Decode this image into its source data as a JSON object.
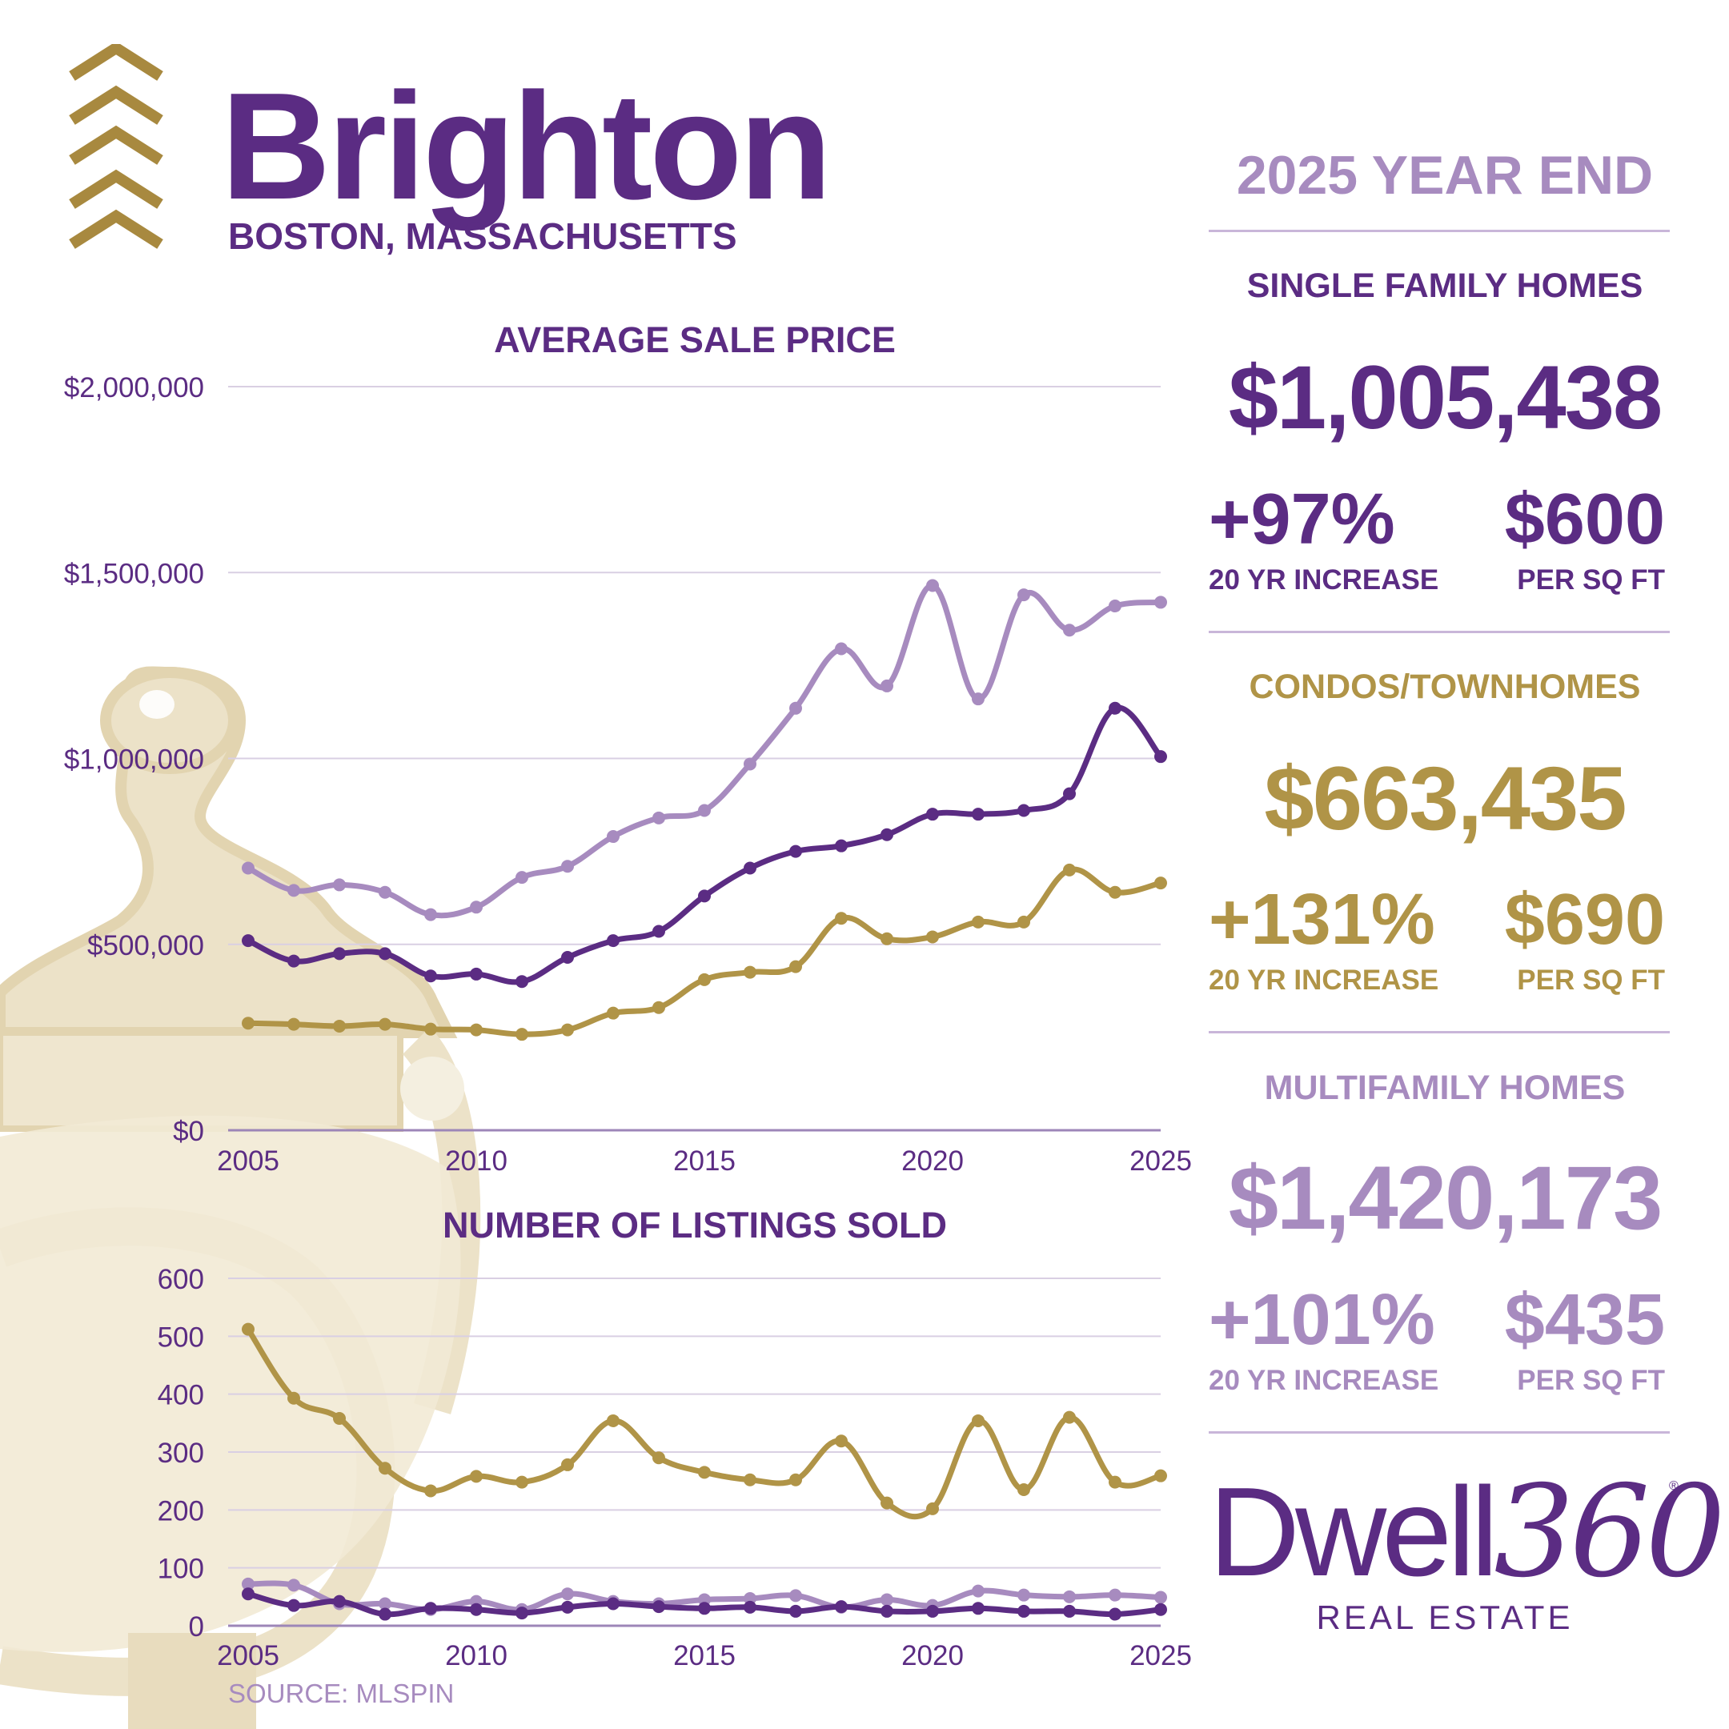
{
  "header": {
    "title": "Brighton",
    "subtitle": "BOSTON, MASSACHUSETTS"
  },
  "summary": {
    "period": "2025 YEAR END",
    "single_family": {
      "heading": "SINGLE FAMILY HOMES",
      "price": "$1,005,438",
      "increase": "+97%",
      "increase_label": "20 YR INCREASE",
      "per_sqft": "$600",
      "per_sqft_label": "PER SQ FT"
    },
    "condos": {
      "heading": "CONDOS/TOWNHOMES",
      "price": "$663,435",
      "increase": "+131%",
      "increase_label": "20 YR INCREASE",
      "per_sqft": "$690",
      "per_sqft_label": "PER SQ FT"
    },
    "multifamily": {
      "heading": "MULTIFAMILY HOMES",
      "price": "$1,420,173",
      "increase": "+101%",
      "increase_label": "20 YR INCREASE",
      "per_sqft": "$435",
      "per_sqft_label": "PER SQ FT"
    }
  },
  "source": "SOURCE: MLSPIN",
  "logo": {
    "word": "Dwell",
    "number": "360",
    "registered": "®",
    "tagline": "REAL ESTATE"
  },
  "colors": {
    "single_family": "#5b2c83",
    "condos": "#b09447",
    "multifamily": "#a78bbf",
    "gridline": "#d9cfe3",
    "axis_text": "#5b2c83",
    "knocker": "#ece2c8"
  },
  "chart_data": [
    {
      "type": "line",
      "title": "AVERAGE SALE PRICE",
      "x": [
        2005,
        2006,
        2007,
        2008,
        2009,
        2010,
        2011,
        2012,
        2013,
        2014,
        2015,
        2016,
        2017,
        2018,
        2019,
        2020,
        2021,
        2022,
        2023,
        2024,
        2025
      ],
      "xticks": [
        "2005",
        "2010",
        "2015",
        "2020",
        "2025"
      ],
      "yticks": [
        "$0",
        "$500,000",
        "$1,000,000",
        "$1,500,000",
        "$2,000,000"
      ],
      "ylim": [
        0,
        2000000
      ],
      "grid": true,
      "series": [
        {
          "key": "multifamily",
          "values": [
            705000,
            645000,
            660000,
            640000,
            580000,
            600000,
            680000,
            710000,
            790000,
            840000,
            860000,
            985000,
            1135000,
            1295000,
            1195000,
            1465000,
            1160000,
            1440000,
            1345000,
            1410000,
            1420000
          ]
        },
        {
          "key": "single_family",
          "values": [
            510000,
            455000,
            475000,
            475000,
            415000,
            420000,
            400000,
            465000,
            510000,
            535000,
            630000,
            705000,
            750000,
            765000,
            795000,
            850000,
            850000,
            860000,
            905000,
            1135000,
            1005000
          ]
        },
        {
          "key": "condos",
          "values": [
            288000,
            285000,
            280000,
            285000,
            272000,
            270000,
            258000,
            270000,
            315000,
            330000,
            405000,
            425000,
            440000,
            570000,
            515000,
            520000,
            560000,
            560000,
            700000,
            640000,
            665000
          ]
        }
      ]
    },
    {
      "type": "line",
      "title": "NUMBER OF LISTINGS SOLD",
      "x": [
        2005,
        2006,
        2007,
        2008,
        2009,
        2010,
        2011,
        2012,
        2013,
        2014,
        2015,
        2016,
        2017,
        2018,
        2019,
        2020,
        2021,
        2022,
        2023,
        2024,
        2025
      ],
      "xticks": [
        "2005",
        "2010",
        "2015",
        "2020",
        "2025"
      ],
      "yticks": [
        "0",
        "100",
        "200",
        "300",
        "400",
        "500",
        "600"
      ],
      "ylim": [
        0,
        600
      ],
      "grid": true,
      "series": [
        {
          "key": "condos",
          "values": [
            512,
            393,
            358,
            272,
            233,
            258,
            248,
            278,
            354,
            290,
            265,
            252,
            252,
            319,
            212,
            202,
            354,
            235,
            360,
            248,
            259
          ]
        },
        {
          "key": "multifamily",
          "values": [
            72,
            70,
            38,
            38,
            28,
            42,
            28,
            55,
            42,
            38,
            45,
            47,
            52,
            32,
            45,
            35,
            60,
            53,
            50,
            53,
            49
          ]
        },
        {
          "key": "single_family",
          "values": [
            55,
            35,
            42,
            20,
            30,
            28,
            22,
            32,
            38,
            33,
            30,
            32,
            25,
            33,
            25,
            25,
            30,
            25,
            25,
            20,
            28
          ]
        }
      ]
    }
  ]
}
